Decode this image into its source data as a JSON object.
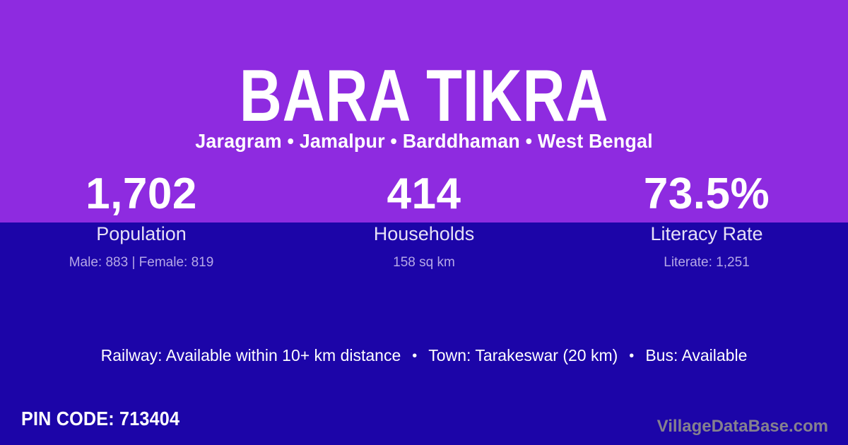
{
  "theme": {
    "top_background": "#8E2BE0",
    "bottom_background": "#1C05A8",
    "text_primary": "#FFFFFF",
    "stat_label_color": "#E6E0F6",
    "stat_detail_color": "#B5A8E6",
    "watermark_color": "#85818E"
  },
  "header": {
    "title": "BARA TIKRA",
    "subtitle": "Jaragram • Jamalpur • Barddhaman • West Bengal"
  },
  "stats": [
    {
      "value": "1,702",
      "label": "Population",
      "detail": "Male: 883 | Female: 819"
    },
    {
      "value": "414",
      "label": "Households",
      "detail": "158 sq km"
    },
    {
      "value": "73.5%",
      "label": "Literacy Rate",
      "detail": "Literate: 1,251"
    }
  ],
  "transport": {
    "railway": "Railway: Available within 10+ km distance",
    "separator": "•",
    "town": "Town: Tarakeswar (20 km)",
    "bus": "Bus: Available"
  },
  "footer": {
    "pin_code": "PIN CODE: 713404",
    "watermark": "VillageDataBase.com"
  }
}
